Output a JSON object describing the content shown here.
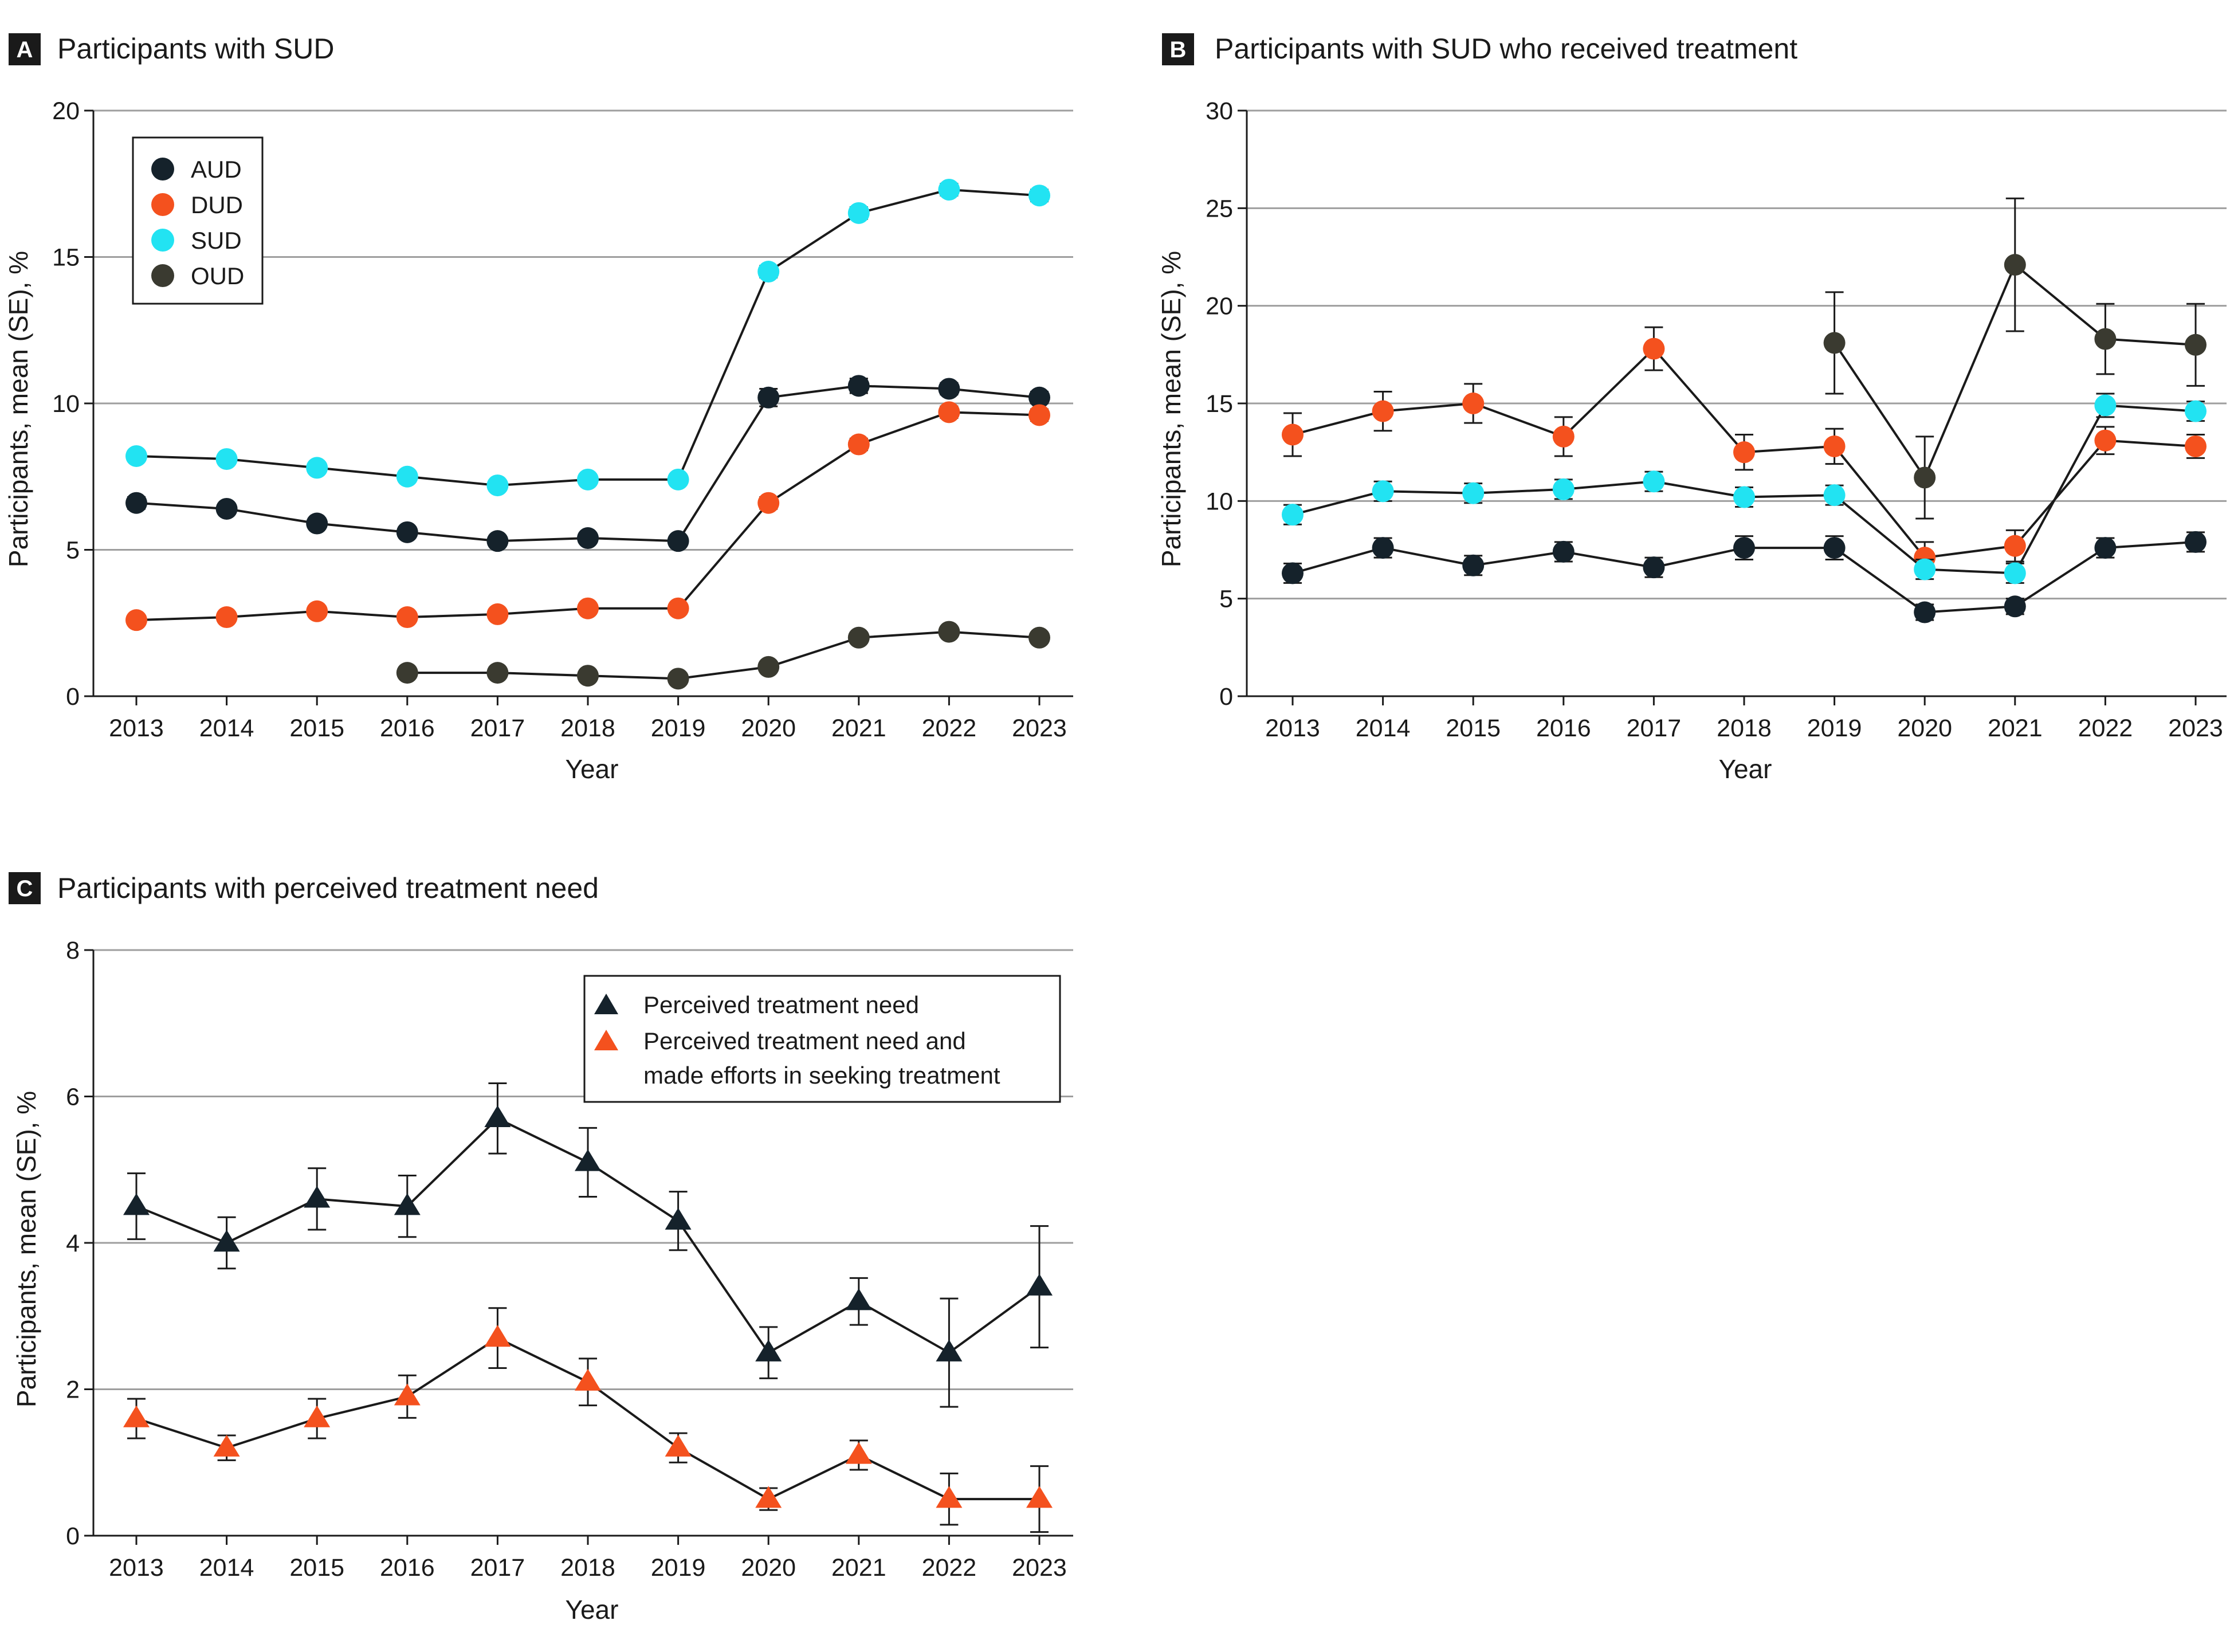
{
  "colors": {
    "AUD": "#15222b",
    "DUD": "#f4511e",
    "SUD": "#22e3f2",
    "OUD": "#3a3a30",
    "need": "#15222b",
    "need_effort": "#f4511e",
    "grid": "#9e9e9e",
    "axis": "#1a1a1a",
    "line": "#1a1a1a"
  },
  "chart_data": [
    {
      "id": "A",
      "type": "line",
      "panel_letter": "A",
      "title": "Participants with SUD",
      "xlabel": "Year",
      "ylabel": "Participants, mean (SE), %",
      "categories": [
        "2013",
        "2014",
        "2015",
        "2016",
        "2017",
        "2018",
        "2019",
        "2020",
        "2021",
        "2022",
        "2023"
      ],
      "ylim": [
        0,
        20
      ],
      "yticks": [
        "0",
        "5",
        "10",
        "15",
        "20"
      ],
      "legend": "top-left",
      "series": [
        {
          "name": "AUD",
          "marker": "circle",
          "values": [
            6.6,
            6.4,
            5.9,
            5.6,
            5.3,
            5.4,
            5.3,
            10.2,
            10.6,
            10.5,
            10.2
          ],
          "se": [
            0.2,
            0.15,
            0.15,
            0.15,
            0.15,
            0.15,
            0.15,
            0.3,
            0.25,
            0.2,
            0.2
          ]
        },
        {
          "name": "DUD",
          "marker": "circle",
          "values": [
            2.6,
            2.7,
            2.9,
            2.7,
            2.8,
            3.0,
            3.0,
            6.6,
            8.6,
            9.7,
            9.6
          ],
          "se": [
            0.1,
            0.1,
            0.1,
            0.1,
            0.1,
            0.1,
            0.1,
            0.2,
            0.2,
            0.2,
            0.2
          ]
        },
        {
          "name": "SUD",
          "marker": "circle",
          "values": [
            8.2,
            8.1,
            7.8,
            7.5,
            7.2,
            7.4,
            7.4,
            14.5,
            16.5,
            17.3,
            17.1
          ],
          "se": [
            0.15,
            0.15,
            0.15,
            0.15,
            0.15,
            0.15,
            0.15,
            0.2,
            0.2,
            0.2,
            0.2
          ]
        },
        {
          "name": "OUD",
          "marker": "circle",
          "values": [
            null,
            null,
            null,
            0.8,
            0.8,
            0.7,
            0.6,
            1.0,
            2.0,
            2.2,
            2.0
          ],
          "se": [
            null,
            null,
            null,
            0.05,
            0.05,
            0.05,
            0.05,
            0.05,
            0.08,
            0.08,
            0.08
          ]
        }
      ]
    },
    {
      "id": "B",
      "type": "line",
      "panel_letter": "B",
      "title": "Participants with SUD who received treatment",
      "xlabel": "Year",
      "ylabel": "Participants, mean (SE), %",
      "categories": [
        "2013",
        "2014",
        "2015",
        "2016",
        "2017",
        "2018",
        "2019",
        "2020",
        "2021",
        "2022",
        "2023"
      ],
      "ylim": [
        0,
        30
      ],
      "yticks": [
        "0",
        "5",
        "10",
        "15",
        "20",
        "25",
        "30"
      ],
      "series": [
        {
          "name": "AUD",
          "marker": "circle",
          "values": [
            6.3,
            7.6,
            6.7,
            7.4,
            6.6,
            7.6,
            7.6,
            4.3,
            4.6,
            7.6,
            7.9
          ],
          "se": [
            0.5,
            0.5,
            0.5,
            0.5,
            0.5,
            0.6,
            0.6,
            0.4,
            0.4,
            0.5,
            0.5
          ]
        },
        {
          "name": "DUD",
          "marker": "circle",
          "values": [
            13.4,
            14.6,
            15.0,
            13.3,
            17.8,
            12.5,
            12.8,
            7.1,
            7.7,
            13.1,
            12.8
          ],
          "se": [
            1.1,
            1.0,
            1.0,
            1.0,
            1.1,
            0.9,
            0.9,
            0.8,
            0.8,
            0.7,
            0.6
          ]
        },
        {
          "name": "SUD",
          "marker": "circle",
          "values": [
            9.3,
            10.5,
            10.4,
            10.6,
            11.0,
            10.2,
            10.3,
            6.5,
            6.3,
            14.9,
            14.6
          ],
          "se": [
            0.5,
            0.5,
            0.5,
            0.5,
            0.5,
            0.5,
            0.5,
            0.5,
            0.5,
            0.6,
            0.5
          ]
        },
        {
          "name": "OUD",
          "marker": "circle",
          "values": [
            null,
            null,
            null,
            null,
            null,
            null,
            18.1,
            11.2,
            22.1,
            18.3,
            18.0
          ],
          "se": [
            null,
            null,
            null,
            null,
            null,
            null,
            2.6,
            2.1,
            3.4,
            1.8,
            2.1
          ]
        }
      ]
    },
    {
      "id": "C",
      "type": "line",
      "panel_letter": "C",
      "title": "Participants with perceived treatment need",
      "xlabel": "Year",
      "ylabel": "Participants, mean (SE), %",
      "categories": [
        "2013",
        "2014",
        "2015",
        "2016",
        "2017",
        "2018",
        "2019",
        "2020",
        "2021",
        "2022",
        "2023"
      ],
      "ylim": [
        0,
        8
      ],
      "yticks": [
        "0",
        "2",
        "4",
        "6",
        "8"
      ],
      "legend": "top-right",
      "series": [
        {
          "name": "Perceived treatment need",
          "marker": "triangle",
          "values": [
            4.5,
            4.0,
            4.6,
            4.5,
            5.7,
            5.1,
            4.3,
            2.5,
            3.2,
            2.5,
            3.4
          ],
          "se": [
            0.45,
            0.35,
            0.42,
            0.42,
            0.48,
            0.47,
            0.4,
            0.35,
            0.32,
            0.74,
            0.83
          ]
        },
        {
          "name": "Perceived treatment need and made efforts in seeking treatment",
          "legend_lines": [
            "Perceived treatment need and",
            "made efforts in seeking treatment"
          ],
          "marker": "triangle",
          "values": [
            1.6,
            1.2,
            1.6,
            1.9,
            2.7,
            2.1,
            1.2,
            0.5,
            1.1,
            0.5,
            0.5
          ],
          "se": [
            0.27,
            0.17,
            0.27,
            0.29,
            0.41,
            0.32,
            0.2,
            0.15,
            0.2,
            0.35,
            0.45
          ]
        }
      ]
    }
  ]
}
